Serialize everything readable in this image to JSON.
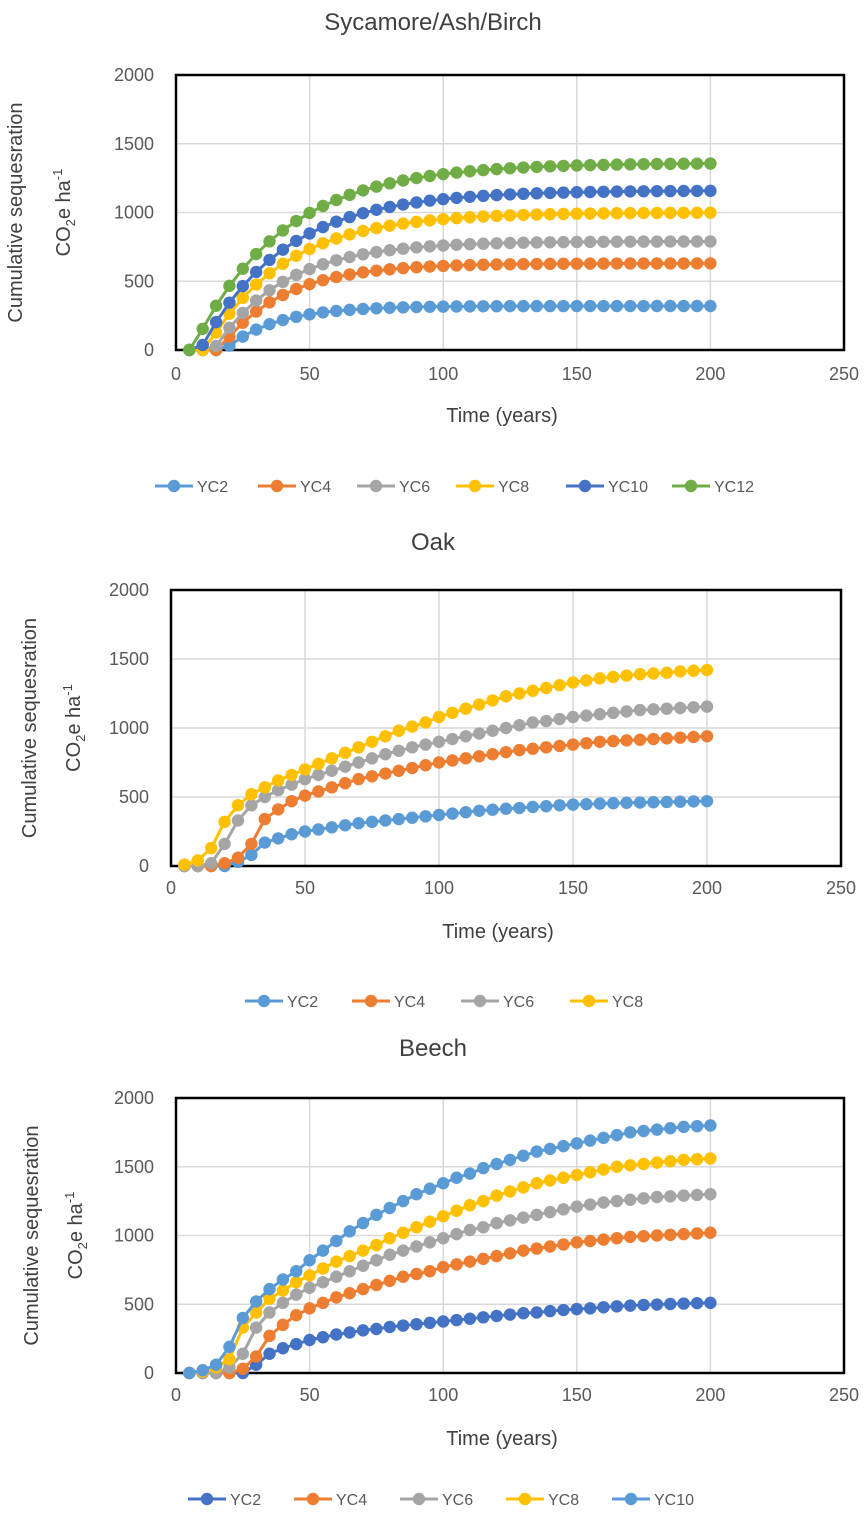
{
  "chart_data": [
    {
      "type": "line",
      "title": "Sycamore/Ash/Birch",
      "xlabel": "Time (years)",
      "ylabel_line1": "Cumulative sequesration",
      "ylabel_line2_main": "CO",
      "ylabel_line2_sub": "2",
      "ylabel_line2_rest": "e ha",
      "ylabel_line2_sup": "-1",
      "xlim": [
        0,
        250
      ],
      "ylim": [
        0,
        2000
      ],
      "xticks": [
        "0",
        "50",
        "100",
        "150",
        "200",
        "250"
      ],
      "yticks": [
        "0",
        "500",
        "1000",
        "1500",
        "2000"
      ],
      "x": [
        5,
        10,
        15,
        20,
        25,
        30,
        35,
        40,
        45,
        50,
        55,
        60,
        65,
        70,
        75,
        80,
        85,
        90,
        95,
        100,
        105,
        110,
        115,
        120,
        125,
        130,
        135,
        140,
        145,
        150,
        155,
        160,
        165,
        170,
        175,
        180,
        185,
        190,
        195,
        200
      ],
      "series": [
        {
          "name": "YC2",
          "color": "#5b9bd5",
          "plateau": 320,
          "start": 18,
          "rate": 0.052
        },
        {
          "name": "YC4",
          "color": "#ed7d31",
          "plateau": 630,
          "start": 16,
          "rate": 0.042
        },
        {
          "name": "YC6",
          "color": "#a5a5a5",
          "plateau": 790,
          "start": 14,
          "rate": 0.038
        },
        {
          "name": "YC8",
          "color": "#ffc000",
          "plateau": 1000,
          "start": 11,
          "rate": 0.034
        },
        {
          "name": "YC10",
          "color": "#4472c4",
          "plateau": 1160,
          "start": 9,
          "rate": 0.032
        },
        {
          "name": "YC12",
          "color": "#70ad47",
          "plateau": 1360,
          "start": 6,
          "rate": 0.03
        }
      ]
    },
    {
      "type": "line",
      "title": "Oak",
      "xlabel": "Time (years)",
      "ylabel_line1": "Cumulative sequesration",
      "ylabel_line2_main": "CO",
      "ylabel_line2_sub": "2",
      "ylabel_line2_rest": "e ha",
      "ylabel_line2_sup": "-1",
      "xlim": [
        0,
        250
      ],
      "ylim": [
        0,
        2000
      ],
      "xticks": [
        "0",
        "50",
        "100",
        "150",
        "200",
        "250"
      ],
      "yticks": [
        "0",
        "500",
        "1000",
        "1500",
        "2000"
      ],
      "x": [
        5,
        10,
        15,
        20,
        25,
        30,
        35,
        40,
        45,
        50,
        55,
        60,
        65,
        70,
        75,
        80,
        85,
        90,
        95,
        100,
        105,
        110,
        115,
        120,
        125,
        130,
        135,
        140,
        145,
        150,
        155,
        160,
        165,
        170,
        175,
        180,
        185,
        190,
        195,
        200
      ],
      "series": [
        {
          "name": "YC2",
          "color": "#5b9bd5",
          "values": [
            0,
            0,
            0,
            0,
            30,
            80,
            170,
            200,
            230,
            250,
            265,
            280,
            295,
            310,
            320,
            330,
            340,
            350,
            360,
            370,
            380,
            390,
            400,
            408,
            415,
            420,
            428,
            433,
            440,
            445,
            448,
            452,
            455,
            458,
            460,
            462,
            464,
            466,
            468,
            470
          ]
        },
        {
          "name": "YC4",
          "color": "#ed7d31",
          "values": [
            0,
            0,
            0,
            20,
            60,
            160,
            340,
            410,
            470,
            510,
            540,
            570,
            600,
            630,
            650,
            670,
            690,
            710,
            730,
            750,
            765,
            780,
            795,
            810,
            825,
            840,
            850,
            860,
            870,
            880,
            890,
            900,
            905,
            910,
            915,
            920,
            925,
            930,
            935,
            940
          ]
        },
        {
          "name": "YC6",
          "color": "#a5a5a5",
          "values": [
            0,
            0,
            20,
            160,
            330,
            440,
            500,
            550,
            590,
            630,
            660,
            690,
            720,
            750,
            780,
            810,
            835,
            860,
            880,
            900,
            920,
            940,
            960,
            980,
            1000,
            1020,
            1040,
            1050,
            1065,
            1080,
            1090,
            1100,
            1110,
            1120,
            1130,
            1135,
            1140,
            1145,
            1150,
            1155
          ]
        },
        {
          "name": "YC8",
          "color": "#ffc000",
          "values": [
            10,
            40,
            130,
            320,
            440,
            520,
            570,
            620,
            660,
            700,
            740,
            780,
            820,
            860,
            900,
            940,
            980,
            1010,
            1040,
            1080,
            1110,
            1140,
            1170,
            1200,
            1230,
            1250,
            1270,
            1290,
            1310,
            1330,
            1345,
            1360,
            1370,
            1380,
            1390,
            1395,
            1400,
            1410,
            1415,
            1420
          ]
        }
      ]
    },
    {
      "type": "line",
      "title": "Beech",
      "xlabel": "Time (years)",
      "ylabel_line1": "Cumulative sequesration",
      "ylabel_line2_main": "CO",
      "ylabel_line2_sub": "2",
      "ylabel_line2_rest": "e ha",
      "ylabel_line2_sup": "-1",
      "xlim": [
        0,
        250
      ],
      "ylim": [
        0,
        2000
      ],
      "xticks": [
        "0",
        "50",
        "100",
        "150",
        "200",
        "250"
      ],
      "yticks": [
        "0",
        "500",
        "1000",
        "1500",
        "2000"
      ],
      "x": [
        5,
        10,
        15,
        20,
        25,
        30,
        35,
        40,
        45,
        50,
        55,
        60,
        65,
        70,
        75,
        80,
        85,
        90,
        95,
        100,
        105,
        110,
        115,
        120,
        125,
        130,
        135,
        140,
        145,
        150,
        155,
        160,
        165,
        170,
        175,
        180,
        185,
        190,
        195,
        200
      ],
      "series": [
        {
          "name": "YC2",
          "color": "#4472c4",
          "values": [
            0,
            0,
            0,
            0,
            0,
            60,
            140,
            180,
            210,
            240,
            260,
            280,
            295,
            310,
            320,
            335,
            345,
            355,
            365,
            375,
            385,
            395,
            405,
            415,
            425,
            435,
            440,
            450,
            458,
            465,
            470,
            478,
            485,
            490,
            495,
            498,
            502,
            505,
            508,
            510
          ]
        },
        {
          "name": "YC4",
          "color": "#ed7d31",
          "values": [
            0,
            0,
            0,
            0,
            30,
            120,
            270,
            350,
            420,
            470,
            510,
            550,
            580,
            610,
            640,
            670,
            700,
            720,
            740,
            770,
            790,
            810,
            830,
            850,
            870,
            890,
            905,
            920,
            935,
            950,
            960,
            970,
            980,
            990,
            995,
            1000,
            1005,
            1010,
            1015,
            1020
          ]
        },
        {
          "name": "YC6",
          "color": "#a5a5a5",
          "values": [
            0,
            0,
            0,
            40,
            140,
            330,
            440,
            510,
            570,
            620,
            660,
            700,
            740,
            780,
            820,
            860,
            890,
            920,
            950,
            980,
            1010,
            1040,
            1060,
            1090,
            1110,
            1130,
            1150,
            1170,
            1190,
            1210,
            1225,
            1240,
            1250,
            1260,
            1270,
            1280,
            1285,
            1290,
            1295,
            1300
          ]
        },
        {
          "name": "YC8",
          "color": "#ffc000",
          "values": [
            0,
            10,
            40,
            100,
            330,
            440,
            540,
            600,
            660,
            710,
            760,
            810,
            850,
            890,
            930,
            980,
            1020,
            1060,
            1100,
            1140,
            1180,
            1220,
            1250,
            1290,
            1320,
            1350,
            1380,
            1400,
            1420,
            1440,
            1460,
            1480,
            1500,
            1510,
            1520,
            1530,
            1540,
            1550,
            1555,
            1560
          ]
        },
        {
          "name": "YC10",
          "color": "#5b9bd5",
          "values": [
            0,
            20,
            60,
            190,
            400,
            520,
            610,
            680,
            740,
            820,
            890,
            960,
            1030,
            1090,
            1150,
            1200,
            1250,
            1300,
            1340,
            1380,
            1420,
            1450,
            1490,
            1520,
            1550,
            1580,
            1610,
            1630,
            1650,
            1670,
            1690,
            1710,
            1730,
            1750,
            1760,
            1770,
            1780,
            1790,
            1795,
            1800
          ]
        }
      ]
    }
  ]
}
